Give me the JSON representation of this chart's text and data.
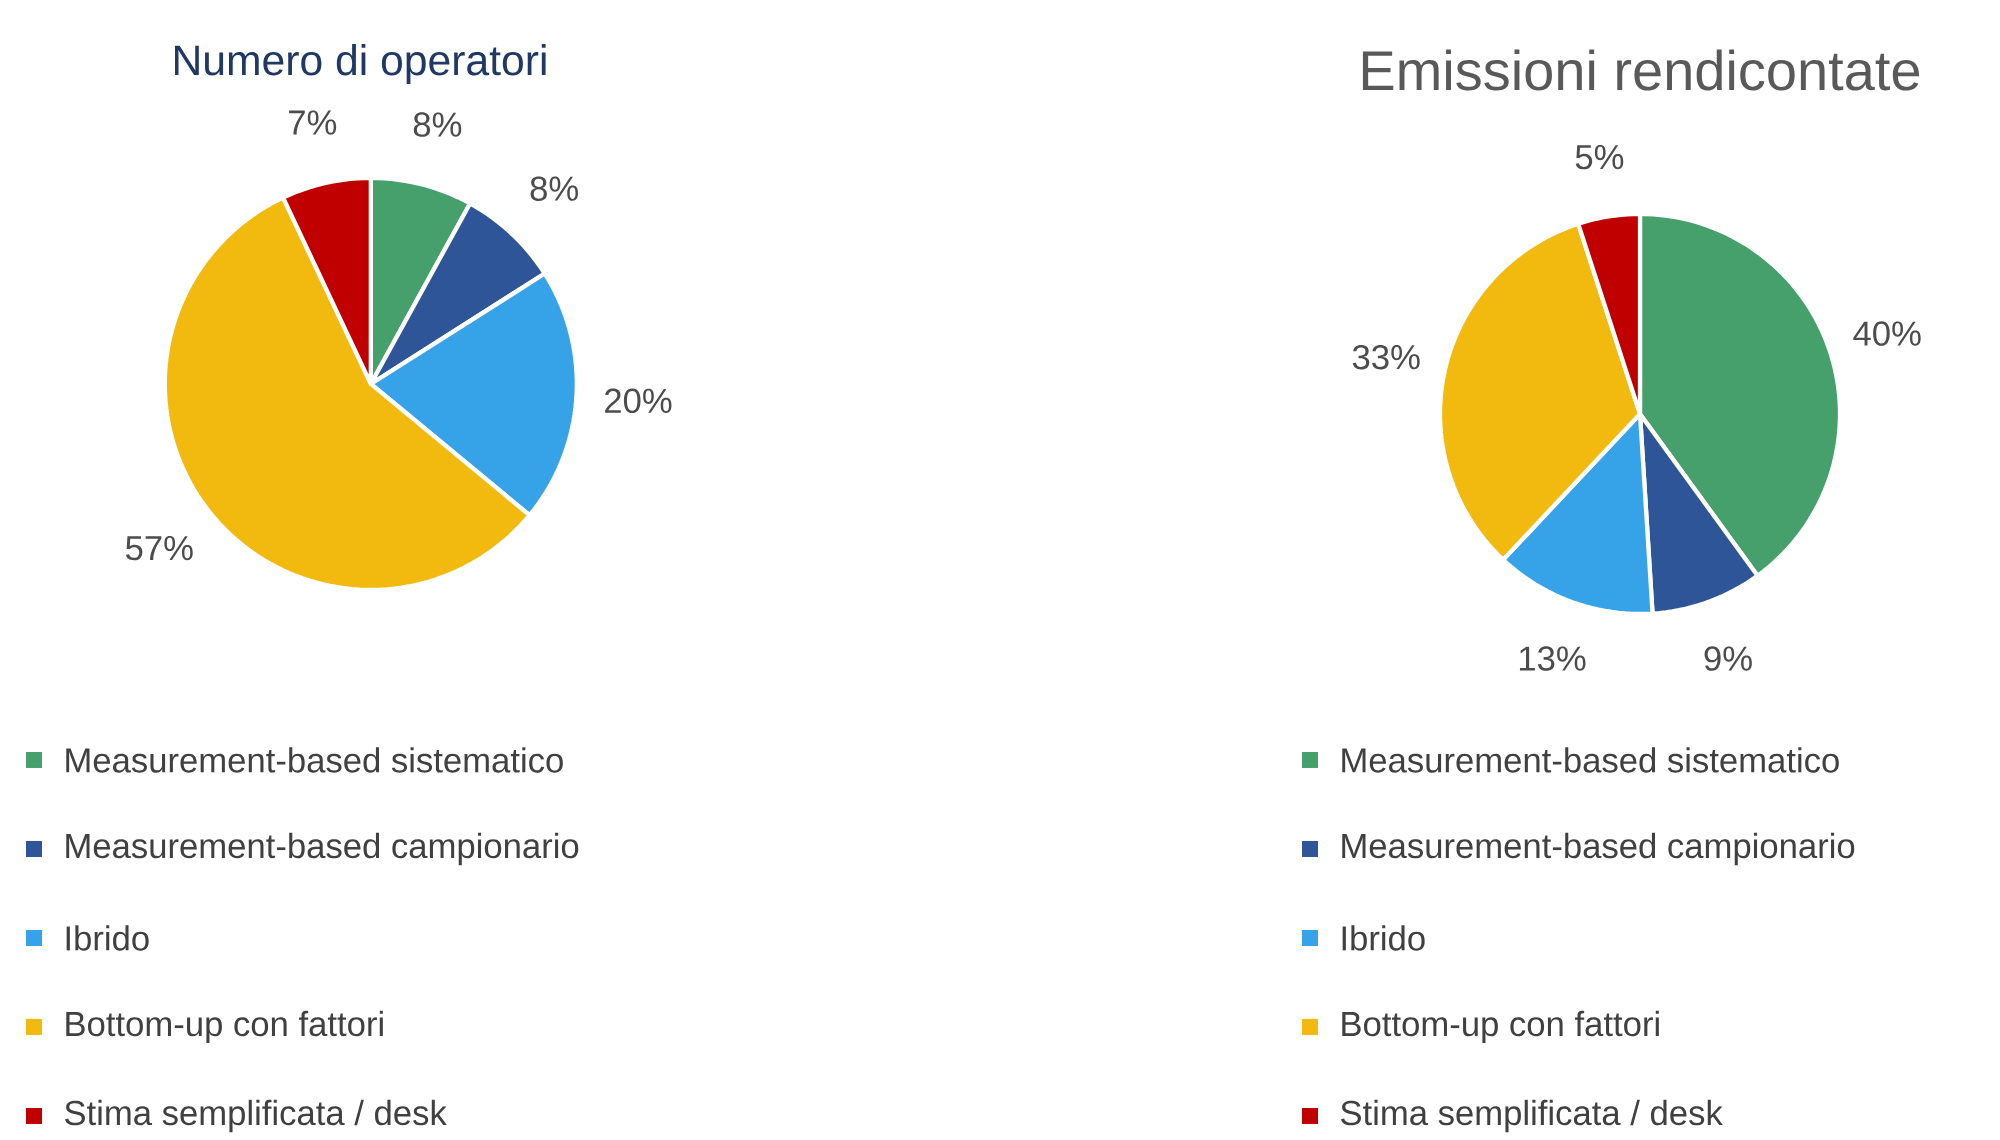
{
  "chart_data": [
    {
      "type": "pie",
      "title": "Numero di operatori",
      "categories": [
        "Measurement-based sistematico",
        "Measurement-based campionario",
        "Ibrido",
        "Bottom-up con fattori",
        "Stima semplificata / desk"
      ],
      "values": [
        8,
        8,
        20,
        57,
        7
      ],
      "value_labels": [
        "8%",
        "8%",
        "20%",
        "57%",
        "7%"
      ],
      "colors": [
        "#45a06b",
        "#2e5597",
        "#36a2e8",
        "#f2b90f",
        "#c00000"
      ],
      "legend": "bottom"
    },
    {
      "type": "pie",
      "title": "Emissioni rendicontate",
      "categories": [
        "Measurement-based sistematico",
        "Measurement-based campionario",
        "Ibrido",
        "Bottom-up con fattori",
        "Stima semplificata / desk"
      ],
      "values": [
        40,
        9,
        13,
        33,
        5
      ],
      "value_labels": [
        "40%",
        "9%",
        "13%",
        "33%",
        "5%"
      ],
      "colors": [
        "#45a06b",
        "#2e5597",
        "#36a2e8",
        "#f2b90f",
        "#c00000"
      ],
      "legend": "bottom"
    }
  ]
}
